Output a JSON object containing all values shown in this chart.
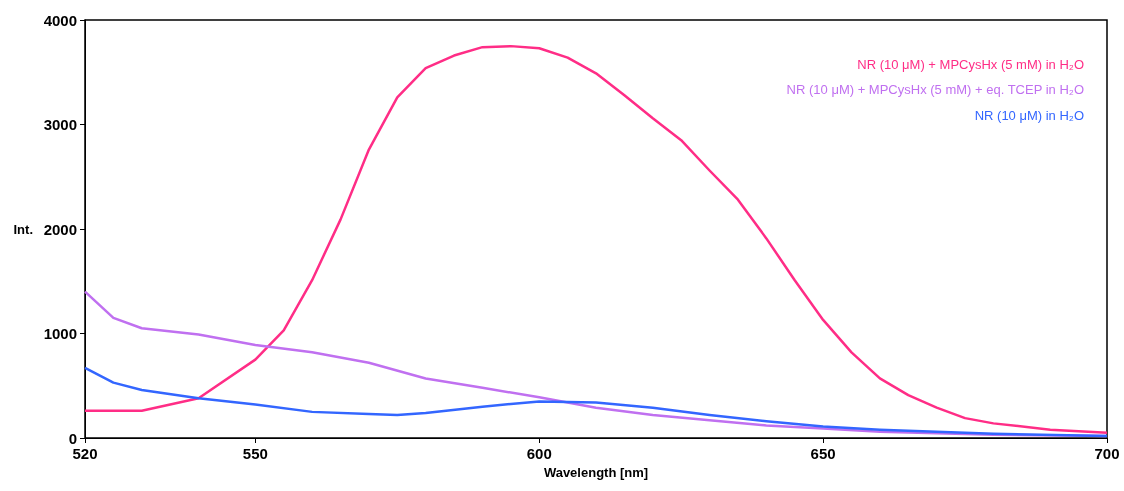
{
  "chart_data": {
    "type": "line",
    "xlabel": "Wavelength [nm]",
    "ylabel": "Int.",
    "xlim": [
      520,
      700
    ],
    "xticks": [
      520,
      550,
      600,
      650,
      700
    ],
    "ylim": [
      0,
      4000
    ],
    "yticks": [
      0,
      1000,
      2000,
      3000,
      4000
    ],
    "grid": false,
    "legend": "top right",
    "marker": "none",
    "line_style": "solid",
    "series": [
      {
        "name": "NR (10 μM) + MPCysHx (5 mM) in H₂O",
        "color": "#ff2d86",
        "x": [
          520,
          530,
          540,
          550,
          555,
          560,
          565,
          570,
          575,
          580,
          585,
          590,
          595,
          600,
          605,
          610,
          615,
          620,
          625,
          630,
          635,
          640,
          645,
          650,
          655,
          660,
          665,
          670,
          675,
          680,
          690,
          700
        ],
        "values": [
          260,
          260,
          380,
          750,
          1030,
          1510,
          2090,
          2760,
          3260,
          3540,
          3660,
          3740,
          3750,
          3730,
          3640,
          3490,
          3280,
          3060,
          2850,
          2560,
          2280,
          1910,
          1510,
          1130,
          820,
          570,
          410,
          290,
          190,
          140,
          80,
          50
        ]
      },
      {
        "name": "NR (10 μM) + MPCysHx (5 mM) + eq. TCEP in H₂O",
        "color": "#c070f0",
        "x": [
          520,
          525,
          530,
          540,
          545,
          550,
          560,
          570,
          580,
          590,
          600,
          610,
          620,
          630,
          640,
          650,
          660,
          680,
          700
        ],
        "values": [
          1400,
          1150,
          1050,
          990,
          940,
          890,
          820,
          720,
          570,
          480,
          390,
          290,
          220,
          170,
          120,
          90,
          60,
          30,
          20
        ]
      },
      {
        "name": "NR (10 μM) in H₂O",
        "color": "#3366ff",
        "x": [
          520,
          525,
          530,
          540,
          550,
          560,
          570,
          575,
          580,
          590,
          600,
          610,
          620,
          630,
          640,
          650,
          660,
          680,
          700
        ],
        "values": [
          670,
          530,
          460,
          380,
          320,
          250,
          230,
          220,
          240,
          300,
          350,
          340,
          290,
          220,
          160,
          110,
          80,
          40,
          20
        ]
      }
    ]
  }
}
